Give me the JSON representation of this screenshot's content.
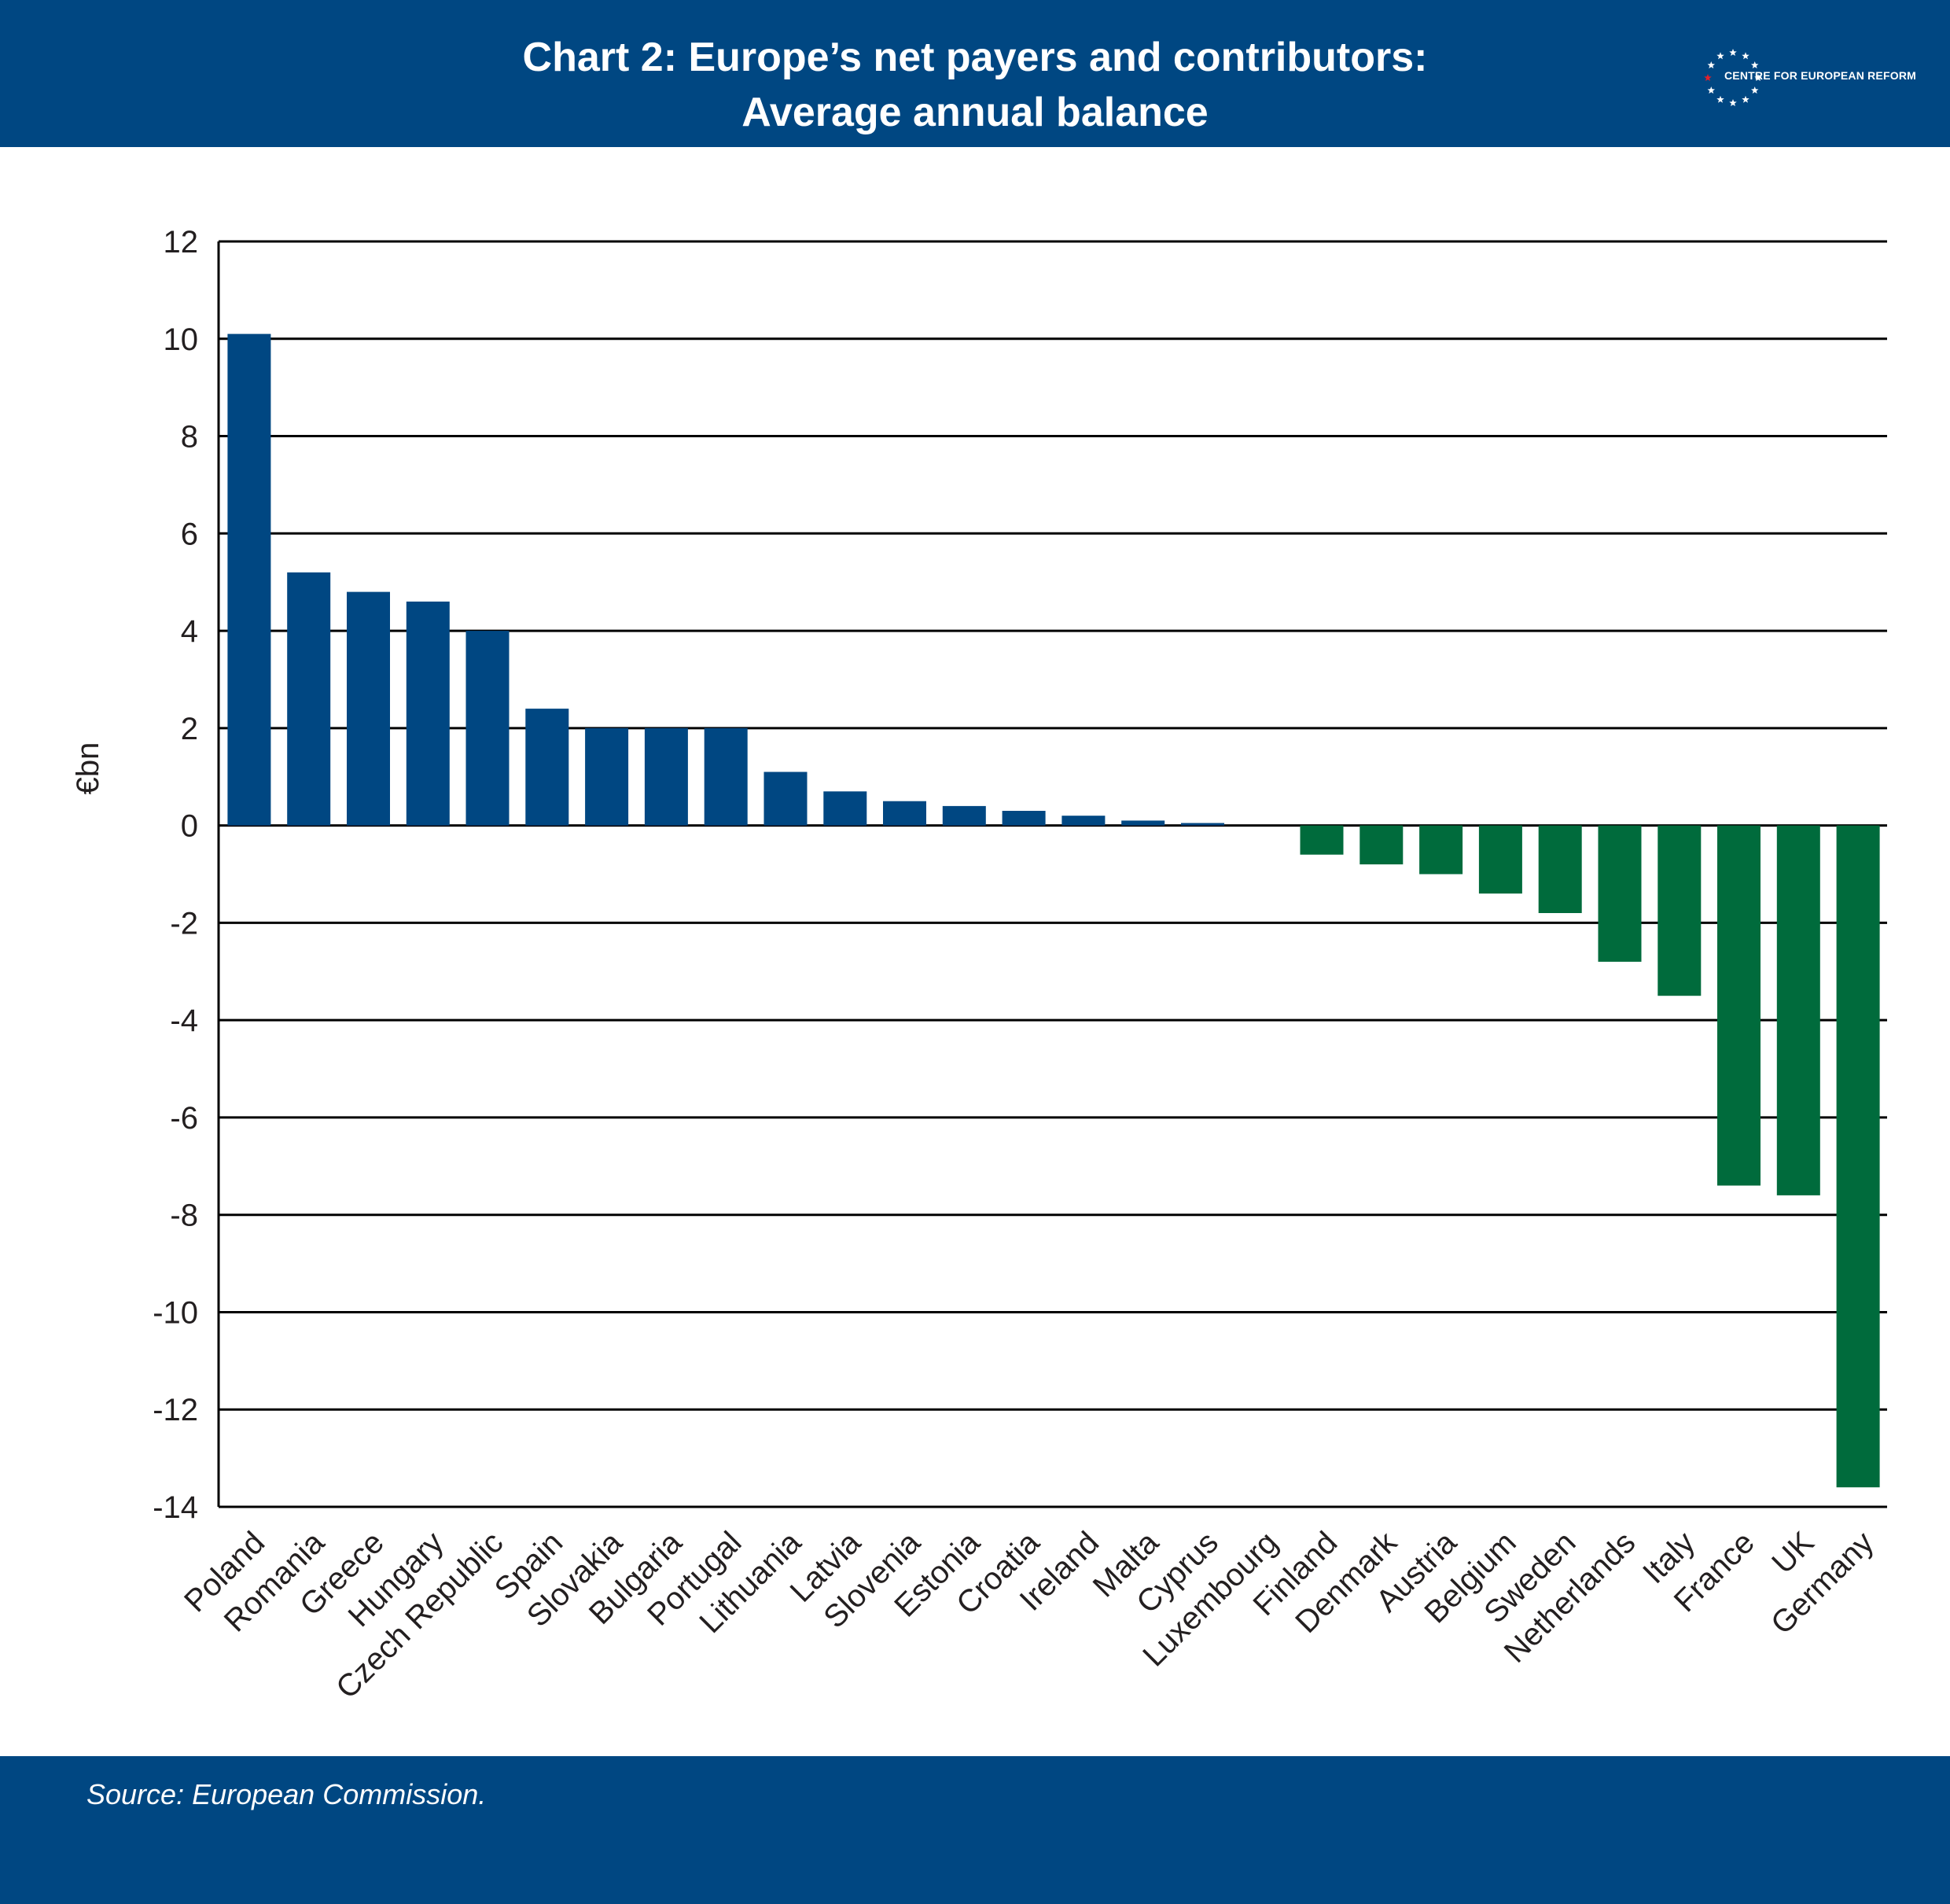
{
  "header": {
    "title_line1": "Chart 2: Europe’s net payers and contributors:",
    "title_line2": "Average annual balance",
    "logo_text": "CENTRE FOR EUROPEAN REFORM",
    "logo_icon": "eu-stars-circle-icon"
  },
  "footer": {
    "source": "Source: European Commission."
  },
  "colors": {
    "brand_blue": "#004782",
    "positive_bar": "#004782",
    "negative_bar": "#006b3c",
    "logo_star_accent": "#e3202a"
  },
  "chart_data": {
    "type": "bar",
    "title": "Chart 2: Europe’s net payers and contributors: Average annual balance",
    "ylabel": "€bn",
    "xlabel": "",
    "ylim": [
      -14,
      12
    ],
    "yticks": [
      12,
      10,
      8,
      6,
      4,
      2,
      0,
      -2,
      -4,
      -6,
      -8,
      -10,
      -12,
      -14
    ],
    "grid": true,
    "categories": [
      "Poland",
      "Romania",
      "Greece",
      "Hungary",
      "Czech Republic",
      "Spain",
      "Slovakia",
      "Bulgaria",
      "Portugal",
      "Lithuania",
      "Latvia",
      "Slovenia",
      "Estonia",
      "Croatia",
      "Ireland",
      "Malta",
      "Cyprus",
      "Luxembourg",
      "Finland",
      "Denmark",
      "Austria",
      "Belgium",
      "Sweden",
      "Netherlands",
      "Italy",
      "France",
      "UK",
      "Germany"
    ],
    "values": [
      10.1,
      5.2,
      4.8,
      4.6,
      4.0,
      2.4,
      2.0,
      2.0,
      2.0,
      1.1,
      0.7,
      0.5,
      0.4,
      0.3,
      0.2,
      0.1,
      0.05,
      0.0,
      -0.6,
      -0.8,
      -1.0,
      -1.4,
      -1.8,
      -2.8,
      -3.5,
      -7.4,
      -7.6,
      -13.6
    ]
  }
}
